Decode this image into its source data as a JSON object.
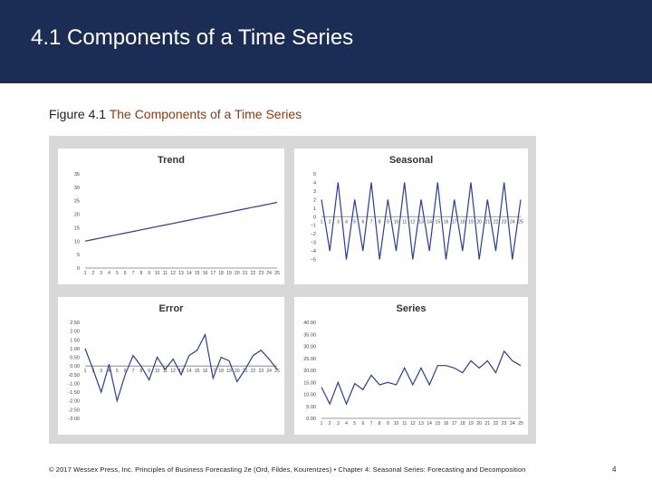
{
  "header": {
    "title": "4.1 Components of a Time Series",
    "background": "#1c2d55"
  },
  "caption": {
    "label": "Figure 4.1",
    "title": "The Components of a Time Series"
  },
  "footer": {
    "text": "© 2017 Wessex Press, Inc. Principles of Business Forecasting 2e (Ord, Fildes, Kourentzes) • Chapter 4: Seasonal Series: Forecasting and Decomposition",
    "page_number": "4"
  },
  "colors": {
    "line": "#2a3f8f",
    "panel": "#d8d8d8",
    "plot_bg": "#ffffff"
  },
  "chart_data": [
    {
      "type": "line",
      "title": "Trend",
      "x": [
        1,
        2,
        3,
        4,
        5,
        6,
        7,
        8,
        9,
        10,
        11,
        12,
        13,
        14,
        15,
        16,
        17,
        18,
        19,
        20,
        21,
        22,
        23,
        24,
        25
      ],
      "x_tick_labels": [
        "1",
        "2",
        "3",
        "4",
        "5",
        "6",
        "7",
        "8",
        "9",
        "10",
        "11",
        "12",
        "13",
        "14",
        "15",
        "16",
        "17",
        "18",
        "19",
        "20",
        "21",
        "22",
        "23",
        "24",
        "25"
      ],
      "y_tick_labels": [
        "0",
        "5",
        "10",
        "15",
        "20",
        "25",
        "30",
        "35"
      ],
      "y_ticks": [
        0,
        5,
        10,
        15,
        20,
        25,
        30,
        35
      ],
      "ylim": [
        0,
        35
      ],
      "values": [
        10,
        10.6,
        11.2,
        11.8,
        12.4,
        13,
        13.6,
        14.2,
        14.8,
        15.4,
        16,
        16.6,
        17.2,
        17.8,
        18.4,
        19,
        19.6,
        20.2,
        20.8,
        21.4,
        22,
        22.6,
        23.2,
        23.8,
        24.4
      ]
    },
    {
      "type": "line",
      "title": "Seasonal",
      "x": [
        1,
        2,
        3,
        4,
        5,
        6,
        7,
        8,
        9,
        10,
        11,
        12,
        13,
        14,
        15,
        16,
        17,
        18,
        19,
        20,
        21,
        22,
        23,
        24,
        25
      ],
      "x_tick_labels": [
        "1",
        "2",
        "3",
        "4",
        "5",
        "6",
        "7",
        "8",
        "9",
        "10",
        "11",
        "12",
        "13",
        "14",
        "15",
        "16",
        "17",
        "18",
        "19",
        "20",
        "21",
        "22",
        "23",
        "24",
        "25"
      ],
      "y_tick_labels": [
        "−5",
        "−4",
        "−3",
        "−2",
        "−1",
        "0",
        "1",
        "2",
        "3",
        "4",
        "5"
      ],
      "y_ticks": [
        -5,
        -4,
        -3,
        -2,
        -1,
        0,
        1,
        2,
        3,
        4,
        5
      ],
      "ylim": [
        -6,
        5
      ],
      "values": [
        2,
        -4,
        4,
        -5,
        2,
        -4,
        4,
        -5,
        2,
        -4,
        4,
        -5,
        2,
        -4,
        4,
        -5,
        2,
        -4,
        4,
        -5,
        2,
        -4,
        4,
        -5,
        2
      ]
    },
    {
      "type": "line",
      "title": "Error",
      "x": [
        1,
        2,
        3,
        4,
        5,
        6,
        7,
        8,
        9,
        10,
        11,
        12,
        13,
        14,
        15,
        16,
        17,
        18,
        19,
        20,
        21,
        22,
        23,
        24,
        25
      ],
      "x_tick_labels": [
        "1",
        "2",
        "3",
        "4",
        "5",
        "6",
        "7",
        "8",
        "9",
        "10",
        "11",
        "12",
        "13",
        "14",
        "15",
        "16",
        "17",
        "18",
        "19",
        "20",
        "21",
        "22",
        "23",
        "24",
        "25"
      ],
      "y_tick_labels": [
        "-3.00",
        "-2.50",
        "-2.00",
        "-1.50",
        "-1.00",
        "-0.50",
        "0.00",
        "0.50",
        "1.00",
        "1.50",
        "2.00",
        "2.50"
      ],
      "y_ticks": [
        -3,
        -2.5,
        -2,
        -1.5,
        -1,
        -0.5,
        0,
        0.5,
        1,
        1.5,
        2,
        2.5
      ],
      "ylim": [
        -3,
        2.5
      ],
      "values": [
        1.0,
        -0.2,
        -1.5,
        0.1,
        -2.0,
        -0.5,
        0.6,
        0.0,
        -0.8,
        0.5,
        -0.2,
        0.4,
        -0.5,
        0.6,
        0.9,
        1.8,
        -0.7,
        0.5,
        0.3,
        -0.9,
        -0.2,
        0.6,
        0.9,
        0.4,
        -0.2
      ]
    },
    {
      "type": "line",
      "title": "Series",
      "x": [
        1,
        2,
        3,
        4,
        5,
        6,
        7,
        8,
        9,
        10,
        11,
        12,
        13,
        14,
        15,
        16,
        17,
        18,
        19,
        20,
        21,
        22,
        23,
        24,
        25
      ],
      "x_tick_labels": [
        "1",
        "2",
        "3",
        "4",
        "5",
        "6",
        "7",
        "8",
        "9",
        "10",
        "11",
        "12",
        "13",
        "14",
        "15",
        "16",
        "17",
        "18",
        "19",
        "20",
        "21",
        "22",
        "23",
        "24",
        "25"
      ],
      "y_tick_labels": [
        "0.00",
        "5.00",
        "10.00",
        "15.00",
        "20.00",
        "25.00",
        "30.00",
        "35.00",
        "40.00"
      ],
      "y_ticks": [
        0,
        5,
        10,
        15,
        20,
        25,
        30,
        35,
        40
      ],
      "ylim": [
        0,
        40
      ],
      "values": [
        13,
        6,
        15,
        6,
        14.5,
        12,
        18,
        14,
        15,
        14,
        21,
        14,
        21,
        14,
        22,
        22,
        21,
        19,
        24,
        21,
        24,
        19,
        28,
        24,
        22
      ]
    }
  ]
}
